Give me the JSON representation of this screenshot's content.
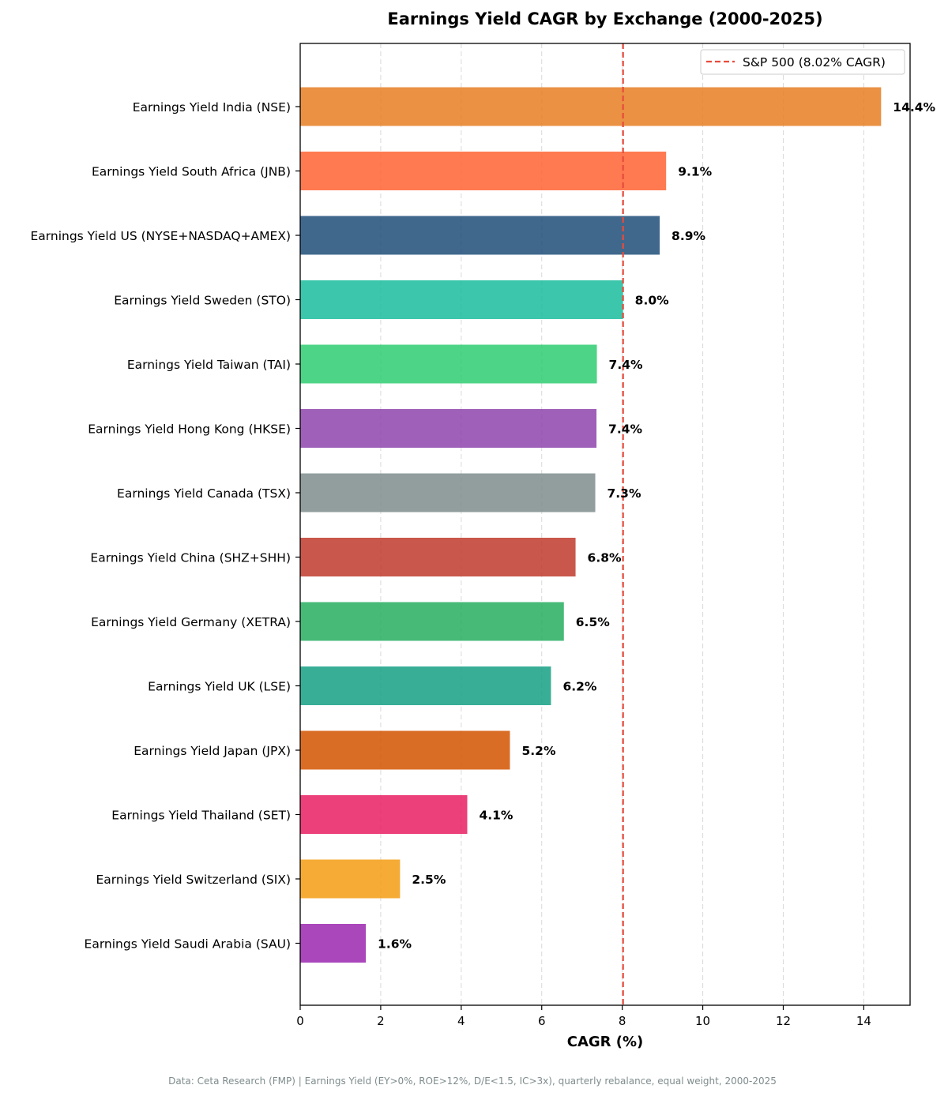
{
  "chart_data": {
    "type": "bar",
    "orientation": "horizontal",
    "title": "Earnings Yield CAGR by Exchange (2000-2025)",
    "xlabel": "CAGR (%)",
    "ylabel": "",
    "xlim": [
      0,
      15.15
    ],
    "xticks": [
      0,
      2,
      4,
      6,
      8,
      10,
      12,
      14
    ],
    "grid": "x-dashed",
    "legend_position": "top-right",
    "categories": [
      "Earnings Yield India (NSE)",
      "Earnings Yield South Africa (JNB)",
      "Earnings Yield US (NYSE+NASDAQ+AMEX)",
      "Earnings Yield Sweden (STO)",
      "Earnings Yield Taiwan (TAI)",
      "Earnings Yield Hong Kong (HKSE)",
      "Earnings Yield Canada (TSX)",
      "Earnings Yield China (SHZ+SHH)",
      "Earnings Yield Germany (XETRA)",
      "Earnings Yield UK (LSE)",
      "Earnings Yield Japan (JPX)",
      "Earnings Yield Thailand (SET)",
      "Earnings Yield Switzerland (SIX)",
      "Earnings Yield Saudi Arabia (SAU)"
    ],
    "values": [
      14.43,
      9.09,
      8.93,
      8.02,
      7.37,
      7.36,
      7.33,
      6.84,
      6.55,
      6.23,
      5.21,
      4.15,
      2.48,
      1.63
    ],
    "value_labels": [
      "14.4%",
      "9.1%",
      "8.9%",
      "8.0%",
      "7.4%",
      "7.4%",
      "7.3%",
      "6.8%",
      "6.5%",
      "6.2%",
      "5.2%",
      "4.1%",
      "2.5%",
      "1.6%"
    ],
    "colors": [
      "#e67e22",
      "#ff6333",
      "#1f4e79",
      "#1abc9c",
      "#2ecc71",
      "#8e44ad",
      "#7f8c8d",
      "#c0392b",
      "#27ae60",
      "#16a085",
      "#d35400",
      "#e91e63",
      "#f39c12",
      "#9b27af"
    ],
    "reference_line": {
      "value": 8.02,
      "label": "S&P 500 (8.02% CAGR)",
      "color": "#e74c3c",
      "style": "dashed"
    },
    "footnote": "Data: Ceta Research (FMP) | Earnings Yield (EY>0%, ROE>12%, D/E<1.5, IC>3x), quarterly rebalance, equal weight, 2000-2025"
  }
}
